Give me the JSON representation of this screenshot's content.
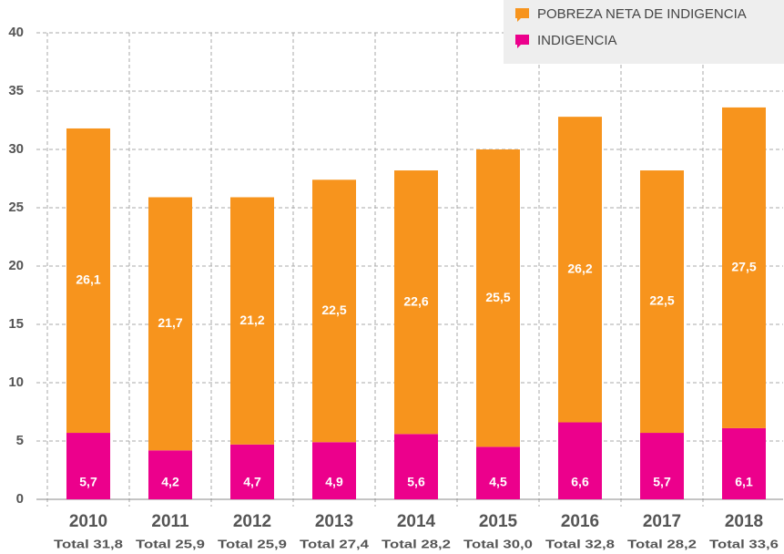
{
  "chart_data": {
    "type": "bar",
    "stacked": true,
    "categories": [
      "2010",
      "2011",
      "2012",
      "2013",
      "2014",
      "2015",
      "2016",
      "2017",
      "2018"
    ],
    "total_labels": [
      "Total 31,8",
      "Total 25,9",
      "Total 25,9",
      "Total 27,4",
      "Total 28,2",
      "Total 30,0",
      "Total 32,8",
      "Total 28,2",
      "Total 33,6"
    ],
    "series": [
      {
        "name": "INDIGENCIA",
        "color": "#ec008c",
        "values": [
          5.7,
          4.2,
          4.7,
          4.9,
          5.6,
          4.5,
          6.6,
          5.7,
          6.1
        ],
        "value_labels": [
          "5,7",
          "4,2",
          "4,7",
          "4,9",
          "5,6",
          "4,5",
          "6,6",
          "5,7",
          "6,1"
        ]
      },
      {
        "name": "POBREZA NETA DE INDIGENCIA",
        "color": "#f7941d",
        "values": [
          26.1,
          21.7,
          21.2,
          22.5,
          22.6,
          25.5,
          26.2,
          22.5,
          27.5
        ],
        "value_labels": [
          "26,1",
          "21,7",
          "21,2",
          "22,5",
          "22,6",
          "25,5",
          "26,2",
          "22,5",
          "27,5"
        ]
      }
    ],
    "ylim": [
      0,
      40
    ],
    "yticks": [
      0,
      5,
      10,
      15,
      20,
      25,
      30,
      35,
      40
    ],
    "grid": true,
    "legend": "top-right"
  }
}
